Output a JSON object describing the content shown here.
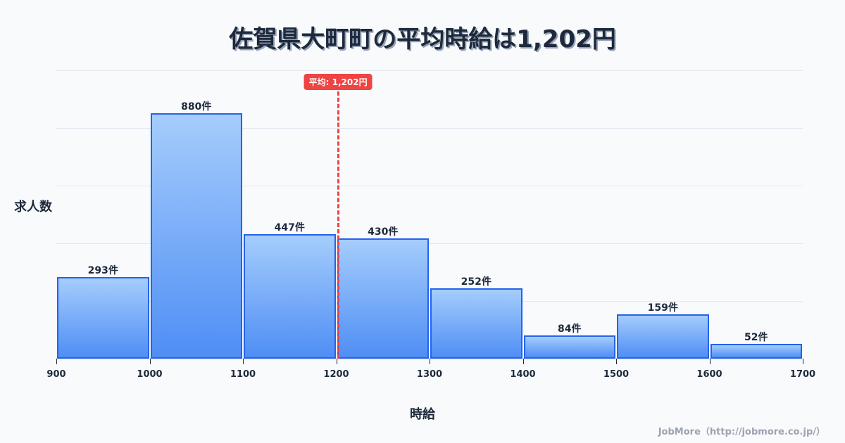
{
  "title": "佐賀県大町町の平均時給は1,202円",
  "credit": "JobMore（http://jobmore.co.jp/）",
  "colors": {
    "bar_fill_top": "#a5cdfc",
    "bar_fill_bottom": "#4f8ef5",
    "bar_border": "#2563eb",
    "average_line": "#ef4444",
    "text": "#1e293b"
  },
  "chart_data": {
    "type": "bar",
    "title": "佐賀県大町町の平均時給は1,202円",
    "xlabel": "時給",
    "ylabel": "求人数",
    "bins": [
      [
        900,
        1000
      ],
      [
        1000,
        1100
      ],
      [
        1100,
        1200
      ],
      [
        1200,
        1300
      ],
      [
        1300,
        1400
      ],
      [
        1400,
        1500
      ],
      [
        1500,
        1600
      ],
      [
        1600,
        1700
      ]
    ],
    "categories": [
      "900-1000",
      "1000-1100",
      "1100-1200",
      "1200-1300",
      "1300-1400",
      "1400-1500",
      "1500-1600",
      "1600-1700"
    ],
    "values": [
      293,
      880,
      447,
      430,
      252,
      84,
      159,
      52
    ],
    "value_labels": [
      "293件",
      "880件",
      "447件",
      "430件",
      "252件",
      "84件",
      "159件",
      "52件"
    ],
    "x_ticks": [
      "900",
      "1000",
      "1100",
      "1200",
      "1300",
      "1400",
      "1500",
      "1600",
      "1700"
    ],
    "xlim": [
      900,
      1700
    ],
    "ylim": [
      0,
      1034
    ],
    "grid": true,
    "annotations": [
      {
        "type": "vline",
        "x": 1202,
        "label": "平均: 1,202円"
      }
    ]
  }
}
